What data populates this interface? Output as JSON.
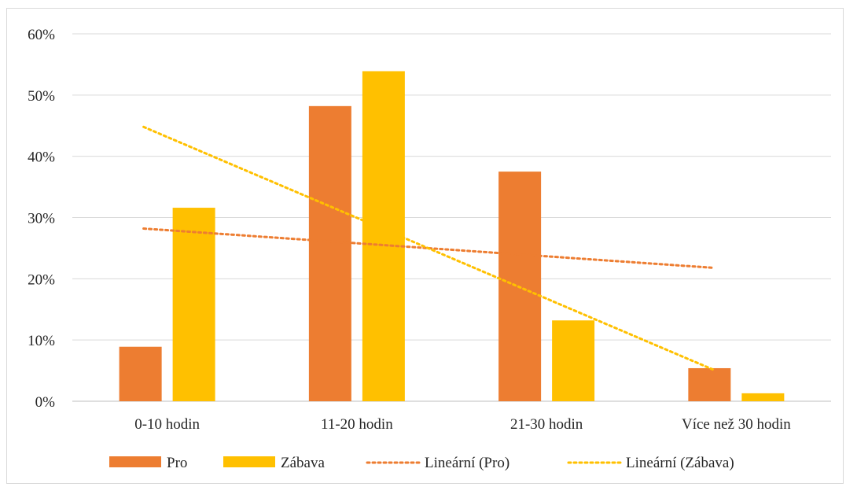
{
  "chart_data": {
    "type": "bar",
    "categories": [
      "0-10 hodin",
      "11-20 hodin",
      "21-30 hodin",
      "Více než 30 hodin"
    ],
    "series": [
      {
        "name": "Pro",
        "values": [
          8.9,
          48.2,
          37.5,
          5.4
        ],
        "color": "#ED7D31"
      },
      {
        "name": "Zábava",
        "values": [
          31.6,
          53.9,
          13.2,
          1.3
        ],
        "color": "#FFC000"
      }
    ],
    "trendlines": [
      {
        "name": "Lineární (Pro)",
        "type": "linear",
        "of_series": "Pro",
        "start": 28.2,
        "end": 21.8,
        "color": "#ED7D31"
      },
      {
        "name": "Lineární (Zábava)",
        "type": "linear",
        "of_series": "Zábava",
        "start": 44.8,
        "end": 5.2,
        "color": "#FFC000"
      }
    ],
    "y_ticks": [
      "0%",
      "10%",
      "20%",
      "30%",
      "40%",
      "50%",
      "60%"
    ],
    "ylim": [
      0,
      60
    ],
    "y_format": "percent",
    "grid": true,
    "legend_position": "bottom",
    "title": "",
    "xlabel": "",
    "ylabel": ""
  }
}
